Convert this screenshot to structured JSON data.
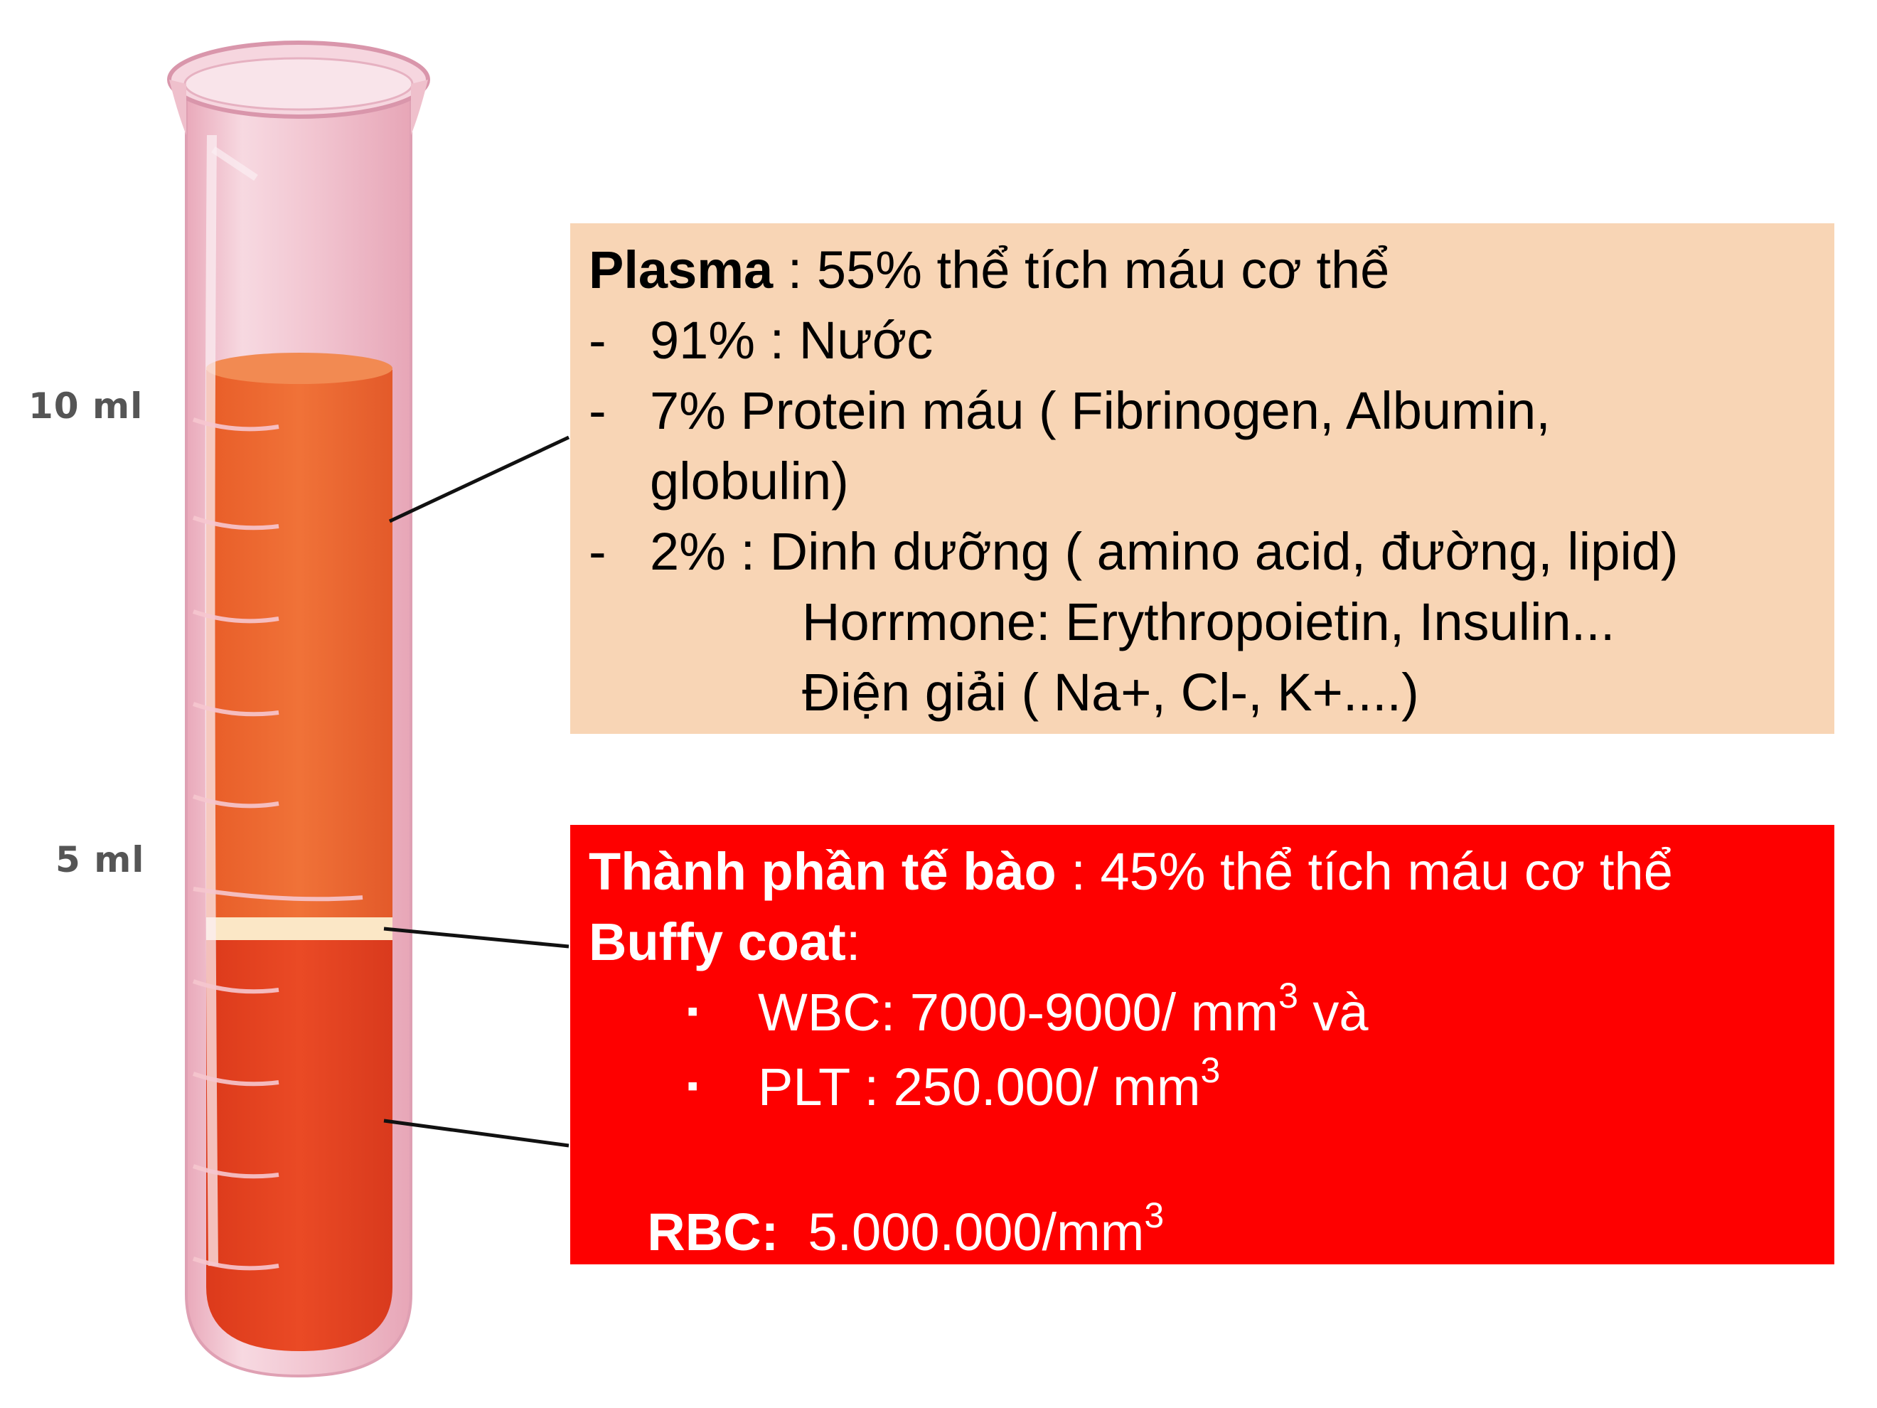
{
  "scale": {
    "label_10": "10 ml",
    "label_5": "5 ml"
  },
  "colors": {
    "plasma_box": "#f8d5b5",
    "cells_box": "#fe0000",
    "plasma_liquid": "#ef6a33",
    "rbc_liquid": "#e8401f",
    "buffy_coat": "#fbe7c6",
    "tube_glass": "#f2c2cf"
  },
  "plasma": {
    "title": "Plasma",
    "title_rest": " : 55% thể tích máu cơ thể",
    "items": [
      "91% : Nước",
      "7% Protein máu ( Fibrinogen, Albumin,",
      "globulin)",
      "2% : Dinh dưỡng ( amino acid, đường, lipid)",
      "Horrmone: Erythropoietin, Insulin...",
      "Điện giải ( Na+, Cl-, K+....)"
    ],
    "dash": "-"
  },
  "cells": {
    "title": "Thành phần tế bào",
    "title_rest": " : 45% thể tích máu cơ thể",
    "buffy_label": "Buffy coat",
    "buffy_colon": ":",
    "bullet": "▪",
    "wbc_text": "WBC: 7000-9000/ mm",
    "wbc_sup": "3",
    "wbc_tail": " và",
    "plt_text": "PLT : 250.000/ mm",
    "plt_sup": "3",
    "rbc_label": "RBC:",
    "rbc_text": "  5.000.000/mm",
    "rbc_sup": "3"
  }
}
